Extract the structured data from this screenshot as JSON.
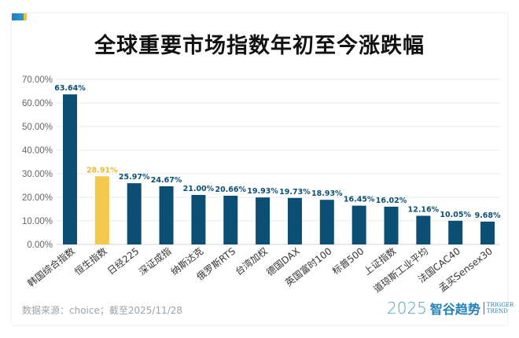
{
  "chart_data": {
    "type": "bar",
    "title": "全球重要市场指数年初至今涨跌幅",
    "categories": [
      "韩国综合指数",
      "恒生指数",
      "日经225",
      "深证成指",
      "纳斯达克",
      "俄罗斯RTS",
      "台湾加权",
      "德国DAX",
      "英国富时100",
      "标普500",
      "上证指数",
      "道琼斯工业平均",
      "法国CAC40",
      "孟买Sensex30"
    ],
    "values": [
      63.64,
      28.91,
      25.97,
      24.67,
      21.0,
      20.66,
      19.93,
      19.73,
      18.93,
      16.45,
      16.02,
      12.16,
      10.05,
      9.68
    ],
    "data_labels": [
      "63.64%",
      "28.91%",
      "25.97%",
      "24.67%",
      "21.00%",
      "20.66%",
      "19.93%",
      "19.73%",
      "18.93%",
      "16.45%",
      "16.02%",
      "12.16%",
      "10.05%",
      "9.68%"
    ],
    "ylim": [
      0,
      70
    ],
    "yticks": [
      "0.00%",
      "10.00%",
      "20.00%",
      "30.00%",
      "40.00%",
      "50.00%",
      "60.00%",
      "70.00%"
    ],
    "grid": true,
    "colors": {
      "default": "#0b4f74",
      "highlight": "#f2c94c",
      "label_default": "#0b4f74",
      "label_highlight": "#e8b92e"
    },
    "highlight_index": 1
  },
  "footer": {
    "source": "数据来源：choice；截至2025/11/28",
    "logo_year": "2025",
    "logo_cn": "智谷趋势",
    "logo_en_1": "TRIGGER",
    "logo_en_2": "TREND"
  }
}
